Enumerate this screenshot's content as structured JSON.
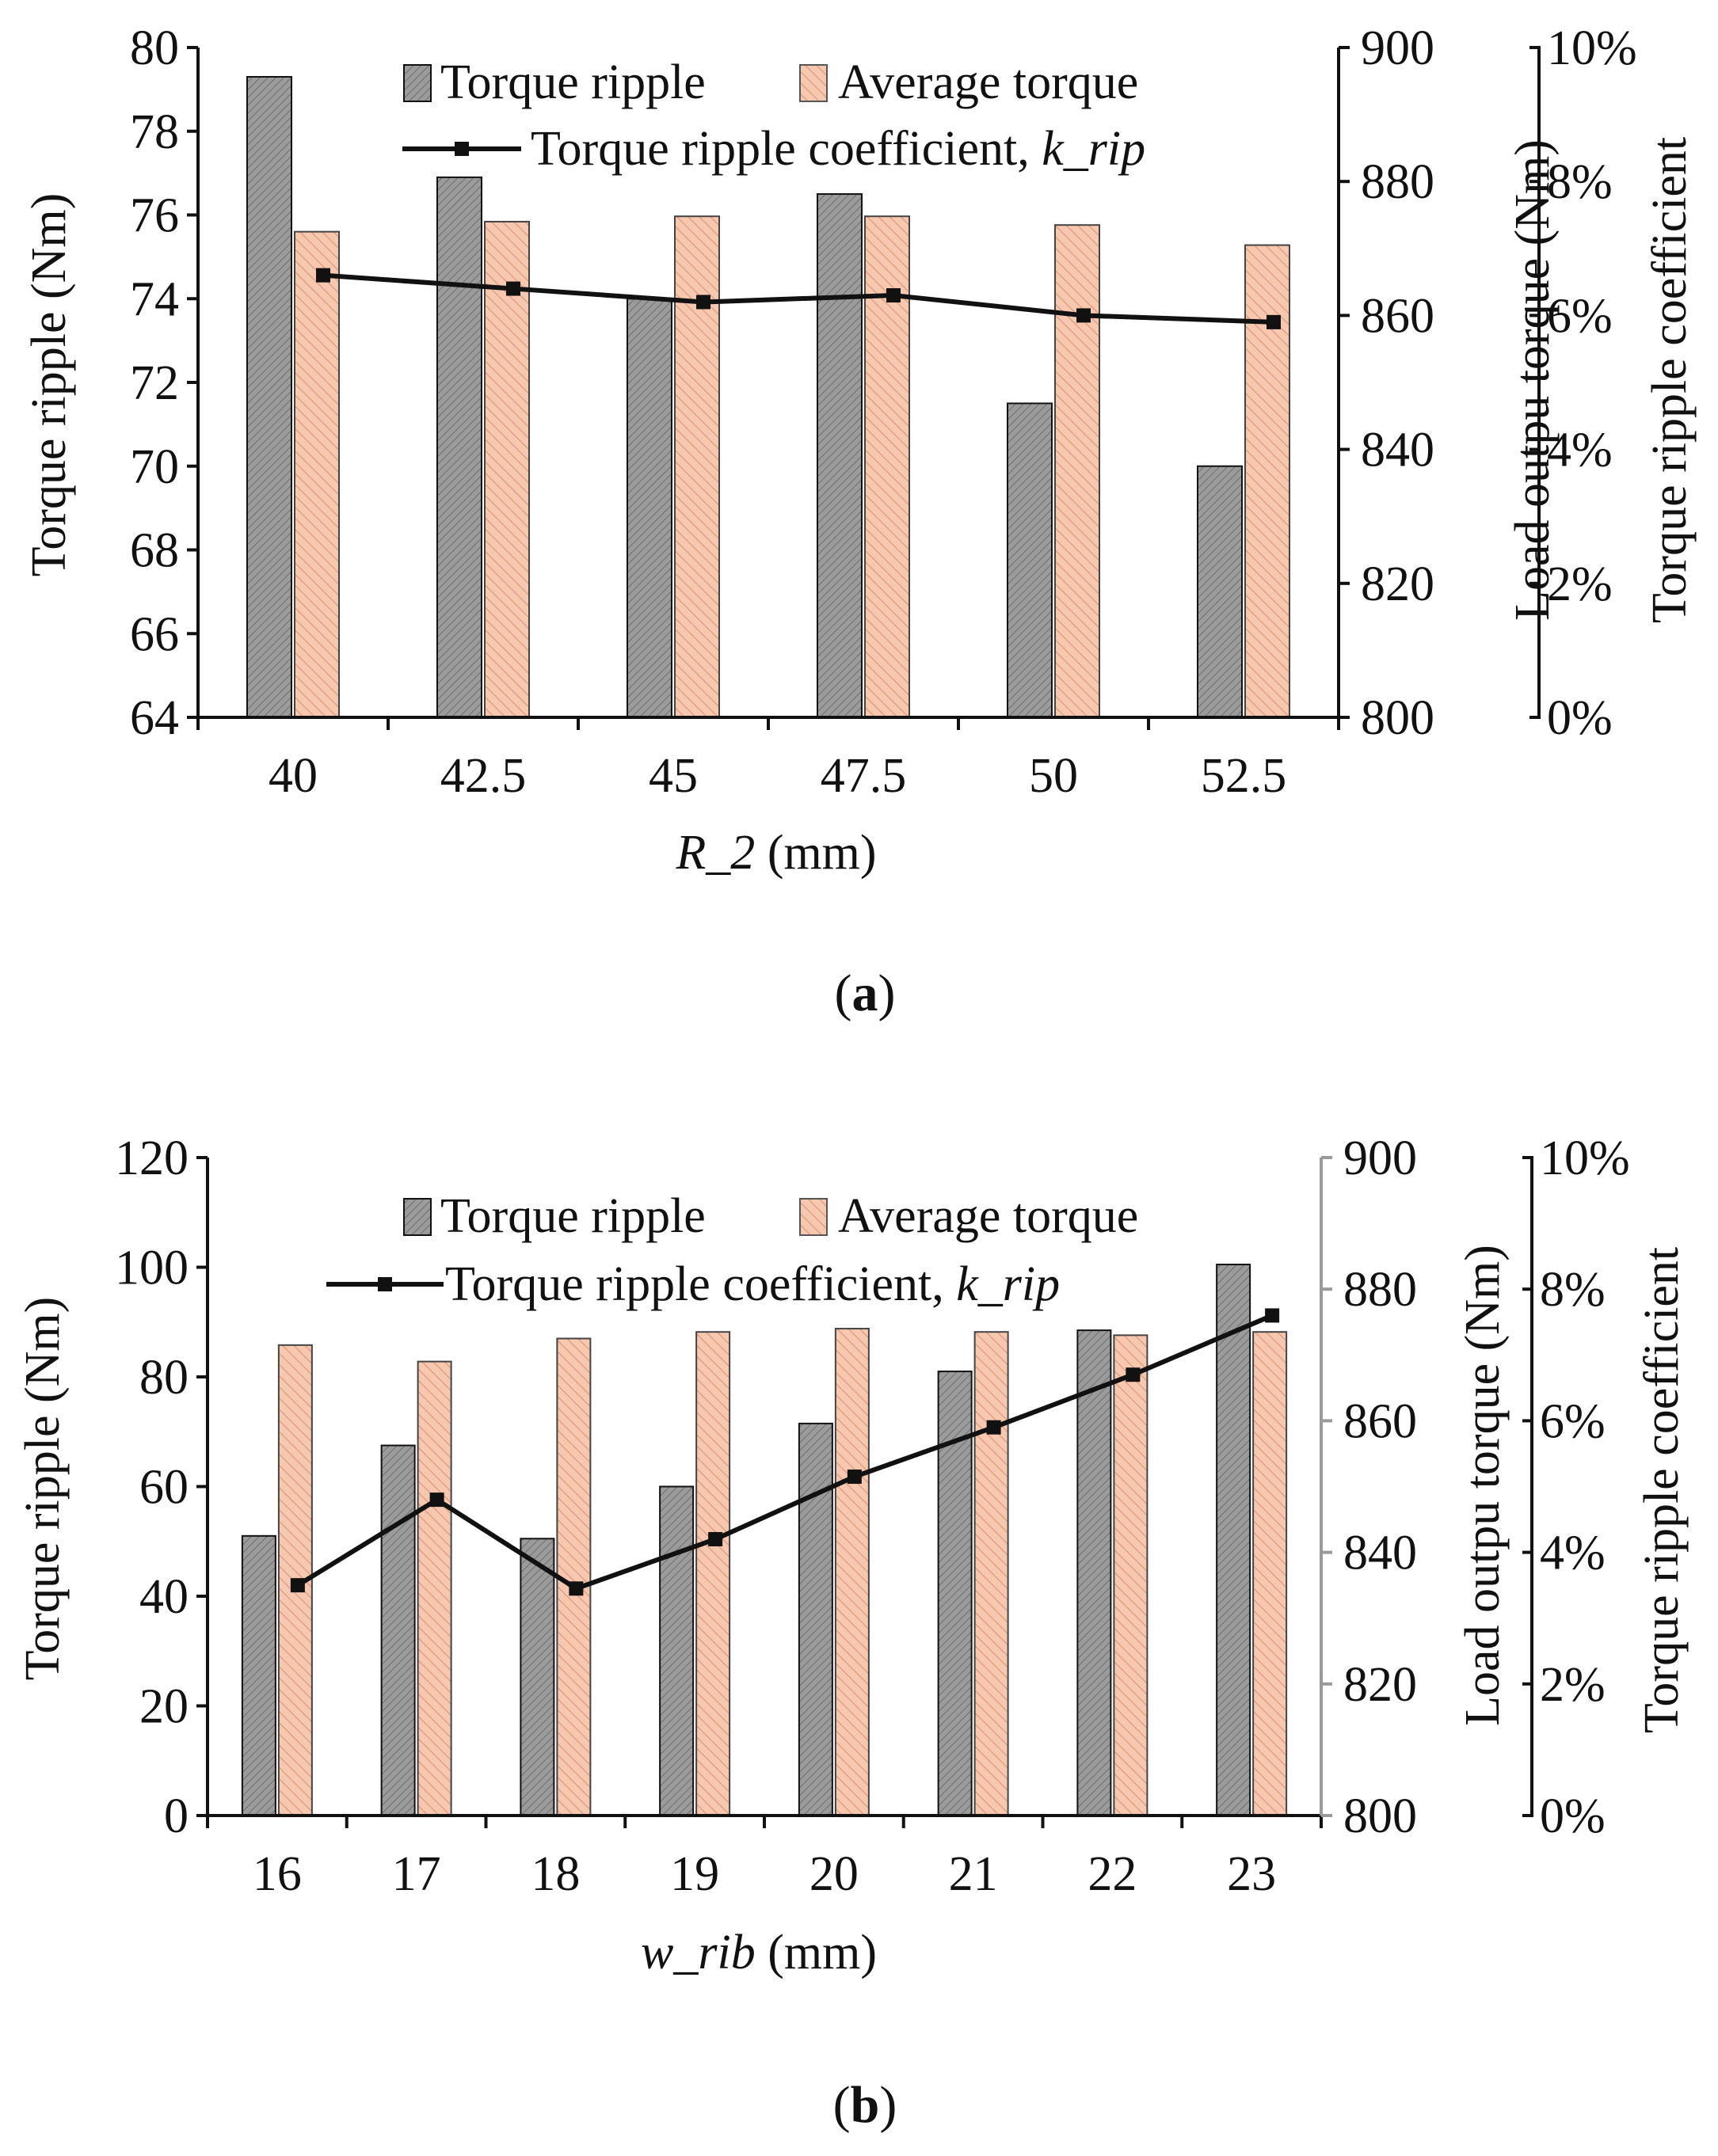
{
  "colors": {
    "torque_ripple_bar": "#8c8c8c",
    "average_torque_bar": "#f2c0a8",
    "line": "#111111"
  },
  "chart_data": [
    {
      "id": "a",
      "type": "bar",
      "panel_label": "(a)",
      "categories": [
        "40",
        "42.5",
        "45",
        "47.5",
        "50",
        "52.5"
      ],
      "xlabel": "R_2 (mm)",
      "ylabel_left": "Torque ripple (Nm)",
      "ylabel_right1": "Load outpu torque (Nm)",
      "ylabel_right2": "Torque ripple coefficient",
      "ylim_left": [
        64,
        80
      ],
      "ylim_right1": [
        800,
        900
      ],
      "ylim_right2": [
        0,
        10
      ],
      "yticks_left": [
        "64",
        "66",
        "68",
        "70",
        "72",
        "74",
        "76",
        "78",
        "80"
      ],
      "yticks_right1": [
        "800",
        "820",
        "840",
        "860",
        "880",
        "900"
      ],
      "yticks_right2": [
        "0%",
        "2%",
        "4%",
        "6%",
        "8%",
        "10%"
      ],
      "series": [
        {
          "name": "Torque ripple",
          "axis": "left",
          "kind": "bar",
          "values": [
            79.3,
            76.9,
            74.0,
            76.5,
            71.5,
            70.0
          ]
        },
        {
          "name": "Average torque",
          "axis": "right1",
          "kind": "bar",
          "values": [
            872.5,
            874.0,
            874.8,
            874.8,
            873.5,
            870.5
          ]
        },
        {
          "name": "Torque ripple coefficient, k_rip",
          "axis": "right2",
          "kind": "line",
          "values": [
            6.6,
            6.4,
            6.2,
            6.3,
            6.0,
            5.9
          ]
        }
      ],
      "legend": {
        "bar1": "Torque ripple",
        "bar2": "Average torque",
        "line_main": "Torque ripple coefficient, ",
        "line_italic": "k_rip"
      }
    },
    {
      "id": "b",
      "type": "bar",
      "panel_label": "(b)",
      "categories": [
        "16",
        "17",
        "18",
        "19",
        "20",
        "21",
        "22",
        "23"
      ],
      "xlabel": "w_rib (mm)",
      "ylabel_left": "Torque ripple (Nm)",
      "ylabel_right1": "Load outpu torque (Nm)",
      "ylabel_right2": "Torque ripple coefficient",
      "ylim_left": [
        0,
        120
      ],
      "ylim_right1": [
        800,
        900
      ],
      "ylim_right2": [
        0,
        10
      ],
      "yticks_left": [
        "0",
        "20",
        "40",
        "60",
        "80",
        "100",
        "120"
      ],
      "yticks_right1": [
        "800",
        "820",
        "840",
        "860",
        "880",
        "900"
      ],
      "yticks_right2": [
        "0%",
        "2%",
        "4%",
        "6%",
        "8%",
        "10%"
      ],
      "series": [
        {
          "name": "Torque ripple",
          "axis": "left",
          "kind": "bar",
          "values": [
            51,
            67.5,
            50.5,
            60,
            71.5,
            81,
            88.5,
            100.5
          ]
        },
        {
          "name": "Average torque",
          "axis": "right1",
          "kind": "bar",
          "values": [
            871.5,
            869,
            872.5,
            873.5,
            874,
            873.5,
            873,
            873.5
          ]
        },
        {
          "name": "Torque ripple coefficient, k_rip",
          "axis": "right2",
          "kind": "line",
          "values": [
            3.5,
            4.8,
            3.45,
            4.2,
            5.15,
            5.9,
            6.7,
            7.6
          ]
        }
      ],
      "legend": {
        "bar1": "Torque ripple",
        "bar2": "Average torque",
        "line_main": "Torque ripple coefficient, ",
        "line_italic": "k_rip"
      }
    }
  ]
}
